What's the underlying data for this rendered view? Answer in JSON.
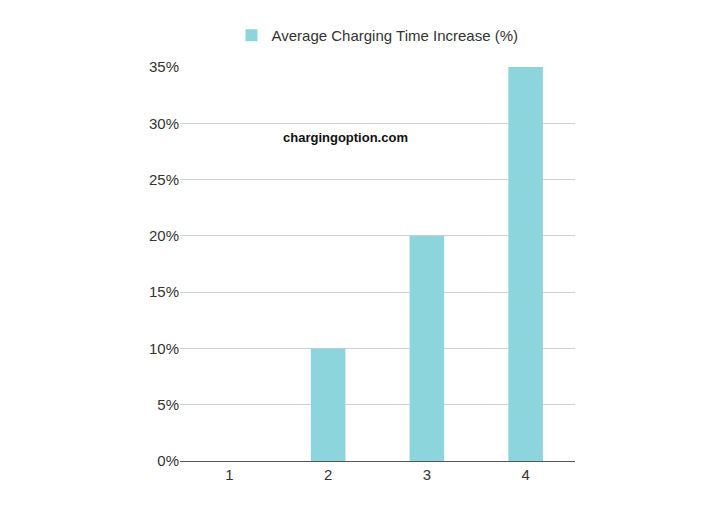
{
  "chart_data": {
    "type": "bar",
    "categories": [
      "1",
      "2",
      "3",
      "4"
    ],
    "series": [
      {
        "name": "Average Charging Time Increase (%)",
        "color": "#8dd5dc",
        "values": [
          0,
          10,
          20,
          35
        ]
      }
    ],
    "ylim": [
      0,
      35
    ],
    "yticks": [
      {
        "value": 0,
        "label": "0%"
      },
      {
        "value": 5,
        "label": "5%"
      },
      {
        "value": 10,
        "label": "10%"
      },
      {
        "value": 15,
        "label": "15%"
      },
      {
        "value": 20,
        "label": "20%"
      },
      {
        "value": 25,
        "label": "25%"
      },
      {
        "value": 30,
        "label": "30%"
      },
      {
        "value": 35,
        "label": "35%"
      }
    ],
    "grid": true,
    "legend": "top",
    "annotations": [
      "chargingoption.com"
    ]
  }
}
